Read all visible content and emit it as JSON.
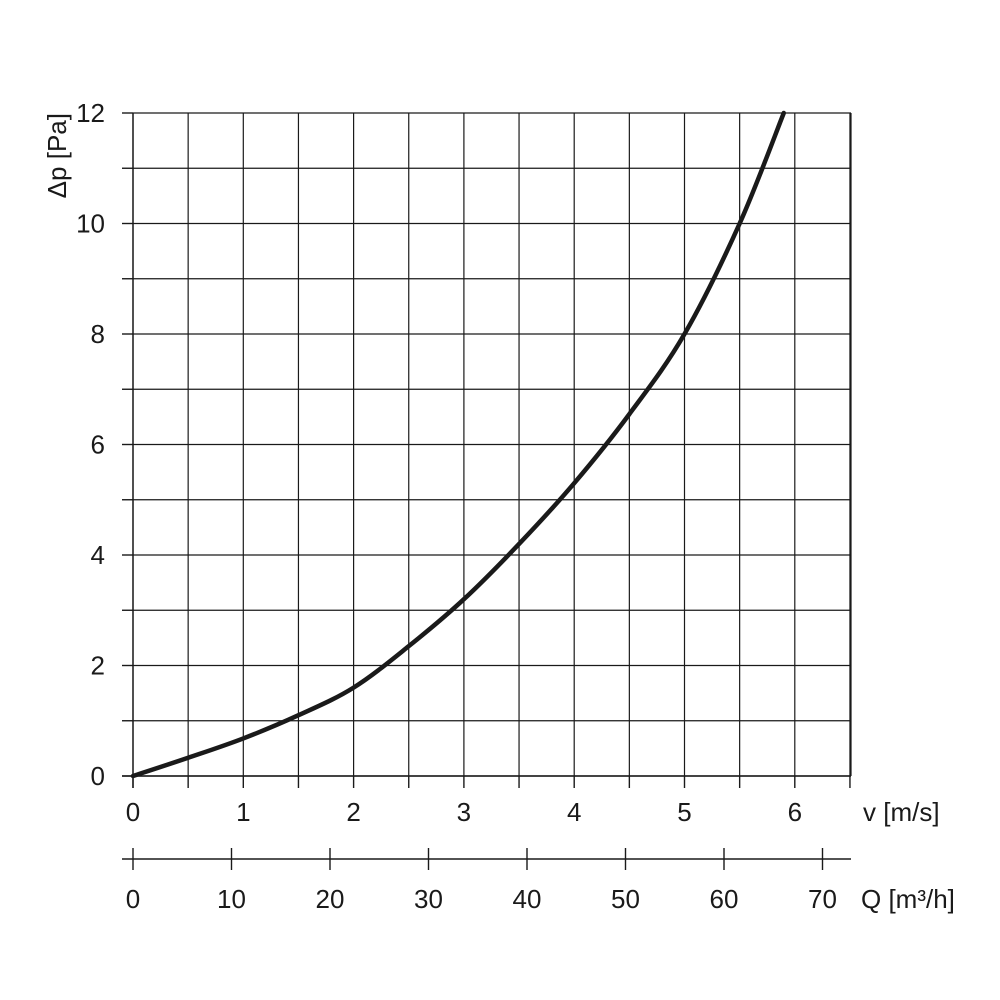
{
  "chart_data": {
    "type": "line",
    "title": "",
    "ylabel": "Δp [Pa]",
    "xlabel": "v [m/s]",
    "secondary_xlabel": "Q [m³/h]",
    "ylim": [
      0,
      12
    ],
    "xlim": [
      0,
      6.5
    ],
    "secondary_xlim": [
      0,
      73
    ],
    "y_ticks": [
      "0",
      "2",
      "4",
      "6",
      "8",
      "10",
      "12"
    ],
    "x_ticks": [
      "0",
      "1",
      "2",
      "3",
      "4",
      "5",
      "6"
    ],
    "secondary_x_ticks": [
      "0",
      "10",
      "20",
      "30",
      "40",
      "50",
      "60",
      "70"
    ],
    "grid": true,
    "series": [
      {
        "x": [
          0,
          0.5,
          1.0,
          1.5,
          2.0,
          2.5,
          3.0,
          3.5,
          4.0,
          4.5,
          5.0,
          5.5,
          5.9
        ],
        "y": [
          0,
          0.33,
          0.68,
          1.1,
          1.6,
          2.35,
          3.2,
          4.2,
          5.3,
          6.55,
          8.0,
          10.0,
          12.0
        ]
      }
    ]
  }
}
